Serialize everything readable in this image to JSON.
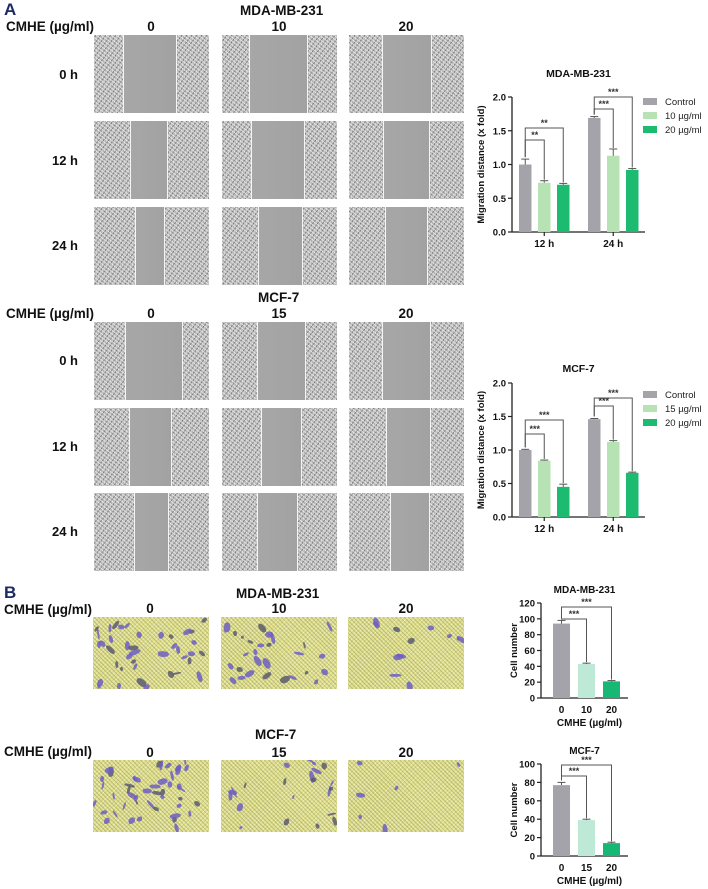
{
  "panel_a": {
    "letter": "A",
    "mda": {
      "cell_line": "MDA-MB-231",
      "conc_label": "CMHE (µg/ml)",
      "concentrations": [
        "0",
        "10",
        "20"
      ],
      "time_labels": [
        "0 h",
        "12 h",
        "24 h"
      ]
    },
    "mcf": {
      "cell_line": "MCF-7",
      "conc_label": "CMHE (µg/ml)",
      "concentrations": [
        "0",
        "15",
        "20"
      ],
      "time_labels": [
        "0 h",
        "12 h",
        "24 h"
      ]
    }
  },
  "panel_b": {
    "letter": "B",
    "mda": {
      "cell_line": "MDA-MB-231",
      "conc_label": "CMHE (µg/ml)",
      "concentrations": [
        "0",
        "10",
        "20"
      ]
    },
    "mcf": {
      "cell_line": "MCF-7",
      "conc_label": "CMHE (µg/ml)",
      "concentrations": [
        "0",
        "15",
        "20"
      ]
    }
  },
  "colors": {
    "control": "#a4a3a9",
    "low": "#b6e2b4",
    "high": "#1dbb70",
    "low_b": "#bde9d6",
    "high_b": "#16b873"
  },
  "chart_data": [
    {
      "type": "bar",
      "title": "MDA-MB-231",
      "xlabel": "",
      "ylabel": "Migration distance (x fold)",
      "categories": [
        "12 h",
        "24 h"
      ],
      "series": [
        {
          "name": "Control",
          "values": [
            1.0,
            1.69
          ],
          "errors": [
            0.08,
            0.02
          ]
        },
        {
          "name": "10 µg/ml",
          "values": [
            0.73,
            1.13
          ],
          "errors": [
            0.03,
            0.1
          ]
        },
        {
          "name": "20 µg/ml",
          "values": [
            0.7,
            0.92
          ],
          "errors": [
            0.02,
            0.02
          ]
        }
      ],
      "yticks": [
        "0.0",
        "0.5",
        "1.0",
        "1.5",
        "2.0"
      ],
      "ylim": [
        0,
        2.0
      ],
      "legend_position": "right",
      "annotations": [
        {
          "group": "12 h",
          "compare": "Control vs 10 µg/ml",
          "label": "**"
        },
        {
          "group": "12 h",
          "compare": "Control vs 20 µg/ml",
          "label": "**"
        },
        {
          "group": "24 h",
          "compare": "Control vs 10 µg/ml",
          "label": "***"
        },
        {
          "group": "24 h",
          "compare": "Control vs 20 µg/ml",
          "label": "***"
        }
      ]
    },
    {
      "type": "bar",
      "title": "MCF-7",
      "xlabel": "",
      "ylabel": "Migration distance (x fold)",
      "categories": [
        "12 h",
        "24 h"
      ],
      "series": [
        {
          "name": "Control",
          "values": [
            1.0,
            1.46
          ],
          "errors": [
            0.01,
            0.01
          ]
        },
        {
          "name": "15 µg/ml",
          "values": [
            0.84,
            1.12
          ],
          "errors": [
            0.01,
            0.02
          ]
        },
        {
          "name": "20 µg/ml",
          "values": [
            0.45,
            0.66
          ],
          "errors": [
            0.04,
            0.01
          ]
        }
      ],
      "yticks": [
        "0.0",
        "0.5",
        "1.0",
        "1.5",
        "2.0"
      ],
      "ylim": [
        0,
        2.0
      ],
      "legend_position": "right",
      "annotations": [
        {
          "group": "12 h",
          "compare": "Control vs 15 µg/ml",
          "label": "***"
        },
        {
          "group": "12 h",
          "compare": "Control vs 20 µg/ml",
          "label": "***"
        },
        {
          "group": "24 h",
          "compare": "Control vs 15 µg/ml",
          "label": "***"
        },
        {
          "group": "24 h",
          "compare": "Control vs 20 µg/ml",
          "label": "***"
        }
      ]
    },
    {
      "type": "bar",
      "title": "MDA-MB-231",
      "xlabel": "CMHE (µg/ml)",
      "ylabel": "Cell number",
      "categories": [
        "0",
        "10",
        "20"
      ],
      "values": [
        94,
        43,
        21
      ],
      "errors": [
        4,
        1,
        1
      ],
      "yticks": [
        "0",
        "20",
        "40",
        "60",
        "80",
        "100",
        "120"
      ],
      "ylim": [
        0,
        120
      ],
      "annotations": [
        {
          "compare": "0 vs 10",
          "label": "***"
        },
        {
          "compare": "0 vs 20",
          "label": "***"
        }
      ]
    },
    {
      "type": "bar",
      "title": "MCF-7",
      "xlabel": "CMHE (µg/ml)",
      "ylabel": "Cell number",
      "categories": [
        "0",
        "15",
        "20"
      ],
      "values": [
        77,
        39,
        14
      ],
      "errors": [
        3,
        1,
        1
      ],
      "yticks": [
        "0",
        "20",
        "40",
        "60",
        "80",
        "100"
      ],
      "ylim": [
        0,
        100
      ],
      "annotations": [
        {
          "compare": "0 vs 15",
          "label": "***"
        },
        {
          "compare": "0 vs 20",
          "label": "***"
        }
      ]
    }
  ]
}
